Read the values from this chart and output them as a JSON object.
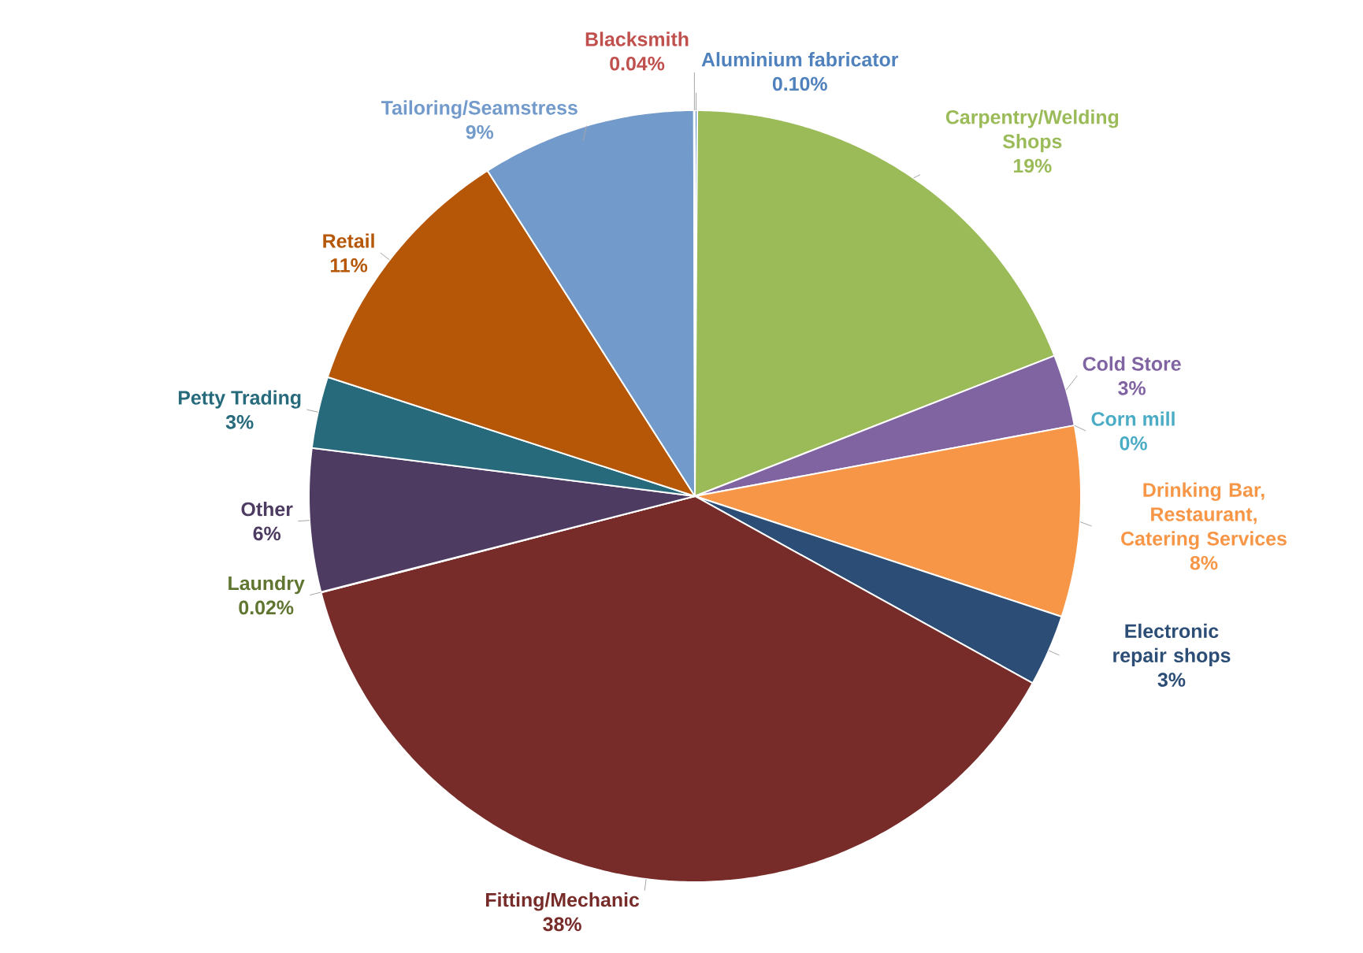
{
  "chart_data": {
    "type": "pie",
    "categories": [
      "Aluminium fabricator",
      "Carpentry/Welding Shops",
      "Cold Store",
      "Corn mill",
      "Drinking Bar, Restaurant, Catering Services",
      "Electronic repair shops",
      "Fitting/Mechanic",
      "Laundry",
      "Other",
      "Petty Trading",
      "Retail",
      "Tailoring/Seamstress",
      "Blacksmith"
    ],
    "values": [
      0.1,
      19,
      3,
      0,
      8,
      3,
      38,
      0.02,
      6,
      3,
      11,
      9,
      0.04
    ],
    "value_labels": [
      "0.10%",
      "19%",
      "3%",
      "0%",
      "8%",
      "3%",
      "38%",
      "0.02%",
      "6%",
      "3%",
      "11%",
      "9%",
      "0.04%"
    ],
    "colors": [
      "#4f81bd",
      "#9bbb59",
      "#8064a2",
      "#4bacc6",
      "#f79646",
      "#2c4d75",
      "#772c2a",
      "#5f7530",
      "#4d3b62",
      "#276a7c",
      "#b65708",
      "#729aca",
      "#c0504d"
    ]
  }
}
